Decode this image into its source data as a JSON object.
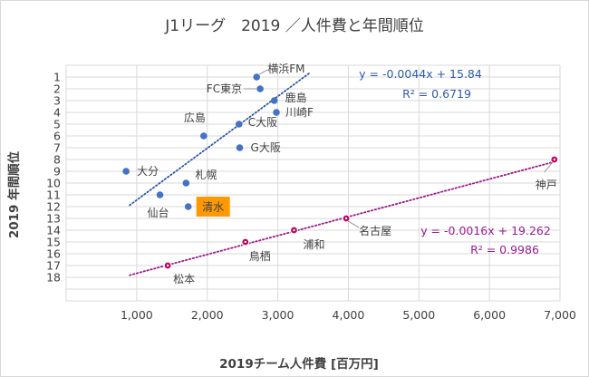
{
  "chart_data": {
    "type": "scatter",
    "title": "J1リーグ　2019 ／人件費と年間順位",
    "xlabel": "2019チーム人件費 [百万円]",
    "ylabel": "2019 年間順位",
    "xlim": [
      0,
      7000
    ],
    "ylim": [
      18,
      1
    ],
    "y_reversed": true,
    "x_ticks": [
      "1,000",
      "2,000",
      "3,000",
      "4,000",
      "5,000",
      "6,000",
      "7,000"
    ],
    "y_ticks": [
      "1",
      "2",
      "3",
      "4",
      "5",
      "6",
      "7",
      "8",
      "9",
      "10",
      "11",
      "12",
      "13",
      "14",
      "15",
      "16",
      "17",
      "18"
    ],
    "grid": "major, both axes",
    "series": [
      {
        "color": "#4472c4",
        "points": [
          {
            "label": "横浜FM",
            "x": 2700,
            "y": 1
          },
          {
            "label": "FC東京",
            "x": 2750,
            "y": 2
          },
          {
            "label": "鹿島",
            "x": 2950,
            "y": 3
          },
          {
            "label": "川崎F",
            "x": 2980,
            "y": 4
          },
          {
            "label": "C大阪",
            "x": 2450,
            "y": 5
          },
          {
            "label": "広島",
            "x": 1950,
            "y": 6
          },
          {
            "label": "G大阪",
            "x": 2460,
            "y": 7
          },
          {
            "label": "大分",
            "x": 850,
            "y": 9
          },
          {
            "label": "札幌",
            "x": 1700,
            "y": 10
          },
          {
            "label": "仙台",
            "x": 1330,
            "y": 11
          },
          {
            "label": "清水",
            "x": 1730,
            "y": 12
          }
        ],
        "trendline": {
          "equation": "y = -0.0044x + 15.84",
          "r2": "R² = 0.6719",
          "slope": -0.0044,
          "intercept": 15.84,
          "x_range": [
            900,
            3450
          ],
          "color": "#2e5aa8"
        }
      },
      {
        "color": "#c00060",
        "points": [
          {
            "label": "神戸",
            "x": 6920,
            "y": 8
          },
          {
            "label": "名古屋",
            "x": 3970,
            "y": 13
          },
          {
            "label": "浦和",
            "x": 3230,
            "y": 14
          },
          {
            "label": "鳥栖",
            "x": 2540,
            "y": 15
          },
          {
            "label": "松本",
            "x": 1440,
            "y": 17
          }
        ],
        "trendline": {
          "equation": "y = -0.0016x + 19.262",
          "r2": "R² = 0.9986",
          "slope": -0.0016,
          "intercept": 19.262,
          "x_range": [
            900,
            6950
          ],
          "color": "#9b1b8e"
        }
      }
    ],
    "highlight": {
      "label": "清水",
      "color": "#ff9900"
    }
  }
}
